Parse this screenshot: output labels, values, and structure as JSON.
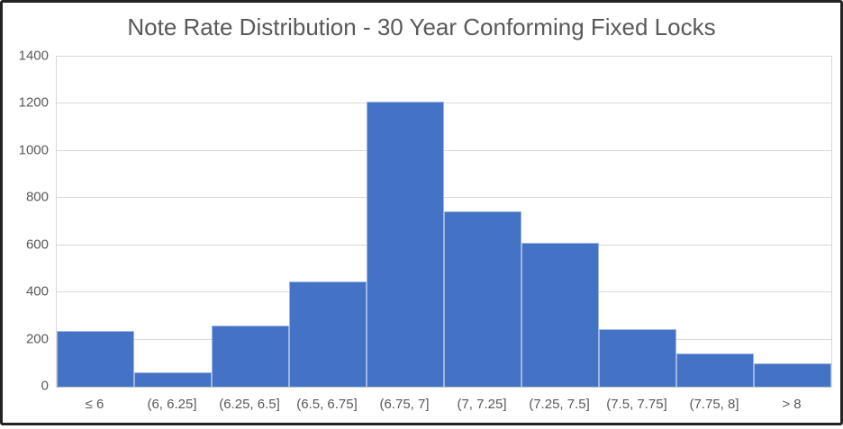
{
  "chart_data": {
    "type": "bar",
    "title": "Note Rate Distribution - 30 Year Conforming Fixed Locks",
    "categories": [
      "≤ 6",
      "(6, 6.25]",
      "(6.25, 6.5]",
      "(6.5, 6.75]",
      "(6.75, 7]",
      "(7, 7.25]",
      "(7.25, 7.5]",
      "(7.5, 7.75]",
      "(7.75, 8]",
      "> 8"
    ],
    "values": [
      235,
      60,
      260,
      445,
      1210,
      745,
      610,
      245,
      140,
      100
    ],
    "yticks": [
      0,
      200,
      400,
      600,
      800,
      1000,
      1200,
      1400
    ],
    "ylim": [
      0,
      1400
    ],
    "xlabel": "",
    "ylabel": "",
    "grid": true,
    "legend": "none",
    "colors": {
      "bar_fill": "#4472C4",
      "bar_edge": "#9DB6E4",
      "gridline": "#D9D9D9",
      "axis_line": "#C8C8C8",
      "axis_text": "#595959",
      "title_text": "#595959",
      "frame_border": "#242424",
      "background": "#FFFFFF"
    }
  }
}
